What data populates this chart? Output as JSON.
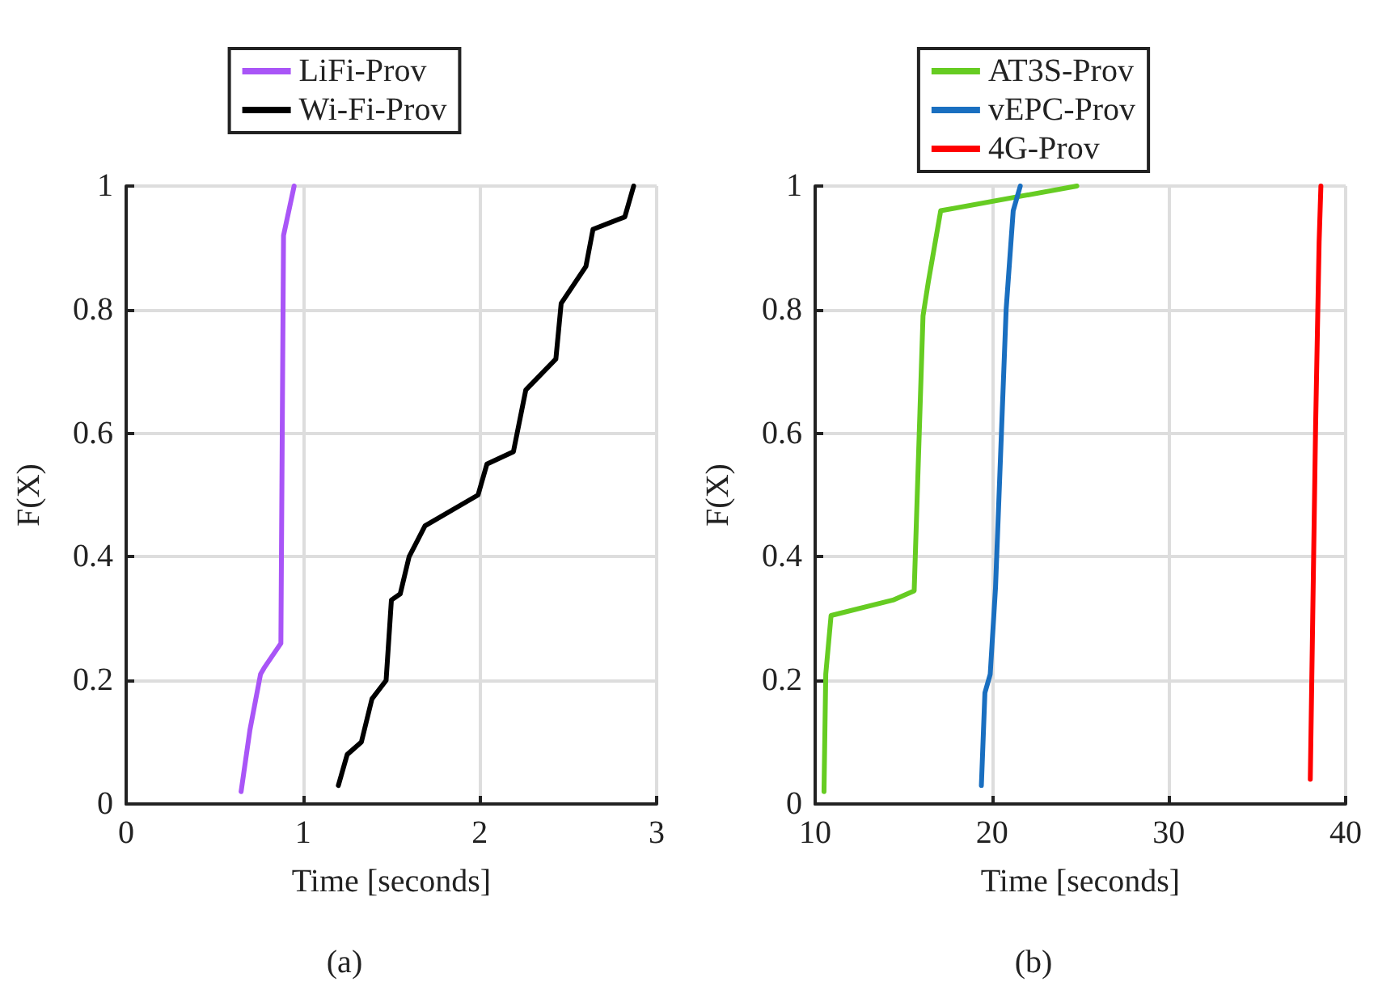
{
  "chart_data": [
    {
      "type": "line",
      "xlabel": "Time [seconds]",
      "ylabel": "F(X)",
      "annotations": [
        "(a)"
      ],
      "xlim": [
        0,
        3
      ],
      "xticks": [
        0,
        1,
        2,
        3
      ],
      "ylim": [
        0,
        1
      ],
      "yticks": [
        0,
        0.2,
        0.4,
        0.6,
        0.8,
        1
      ],
      "grid": true,
      "legend": "top",
      "marker": "none",
      "line_style": "solid",
      "series": [
        {
          "name": "LiFi-Prov",
          "color": "#a955f7",
          "x": [
            0.65,
            0.7,
            0.76,
            0.78,
            0.875,
            0.89,
            0.95
          ],
          "values": [
            0.02,
            0.12,
            0.21,
            0.22,
            0.26,
            0.92,
            1.0
          ]
        },
        {
          "name": "Wi-Fi-Prov",
          "color": "#000000",
          "x": [
            1.2,
            1.25,
            1.33,
            1.39,
            1.47,
            1.5,
            1.55,
            1.6,
            1.69,
            1.99,
            2.04,
            2.19,
            2.26,
            2.43,
            2.46,
            2.6,
            2.64,
            2.82,
            2.87
          ],
          "values": [
            0.03,
            0.08,
            0.1,
            0.17,
            0.2,
            0.33,
            0.34,
            0.4,
            0.45,
            0.5,
            0.55,
            0.57,
            0.67,
            0.72,
            0.81,
            0.87,
            0.93,
            0.95,
            1.0
          ]
        }
      ]
    },
    {
      "type": "line",
      "xlabel": "Time [seconds]",
      "ylabel": "F(X)",
      "annotations": [
        "(b)"
      ],
      "xlim": [
        10,
        40
      ],
      "xticks": [
        10,
        20,
        30,
        40
      ],
      "ylim": [
        0,
        1
      ],
      "yticks": [
        0,
        0.2,
        0.4,
        0.6,
        0.8,
        1
      ],
      "grid": true,
      "legend": "top",
      "marker": "none",
      "line_style": "solid",
      "series": [
        {
          "name": "AT3S-Prov",
          "color": "#66cc22",
          "x": [
            10.5,
            10.6,
            10.9,
            14.4,
            15.6,
            16.1,
            16.4,
            17.1,
            24.8
          ],
          "values": [
            0.02,
            0.21,
            0.305,
            0.33,
            0.345,
            0.79,
            0.845,
            0.96,
            1.0
          ]
        },
        {
          "name": "vEPC-Prov",
          "color": "#1a6fc0",
          "x": [
            19.4,
            19.6,
            19.9,
            20.2,
            20.8,
            21.2,
            21.6
          ],
          "values": [
            0.03,
            0.18,
            0.21,
            0.35,
            0.8,
            0.96,
            1.0
          ]
        },
        {
          "name": "4G-Prov",
          "color": "#ff0000",
          "x": [
            38.0,
            38.3,
            38.5,
            38.6
          ],
          "values": [
            0.04,
            0.61,
            0.91,
            1.0
          ]
        }
      ]
    }
  ]
}
